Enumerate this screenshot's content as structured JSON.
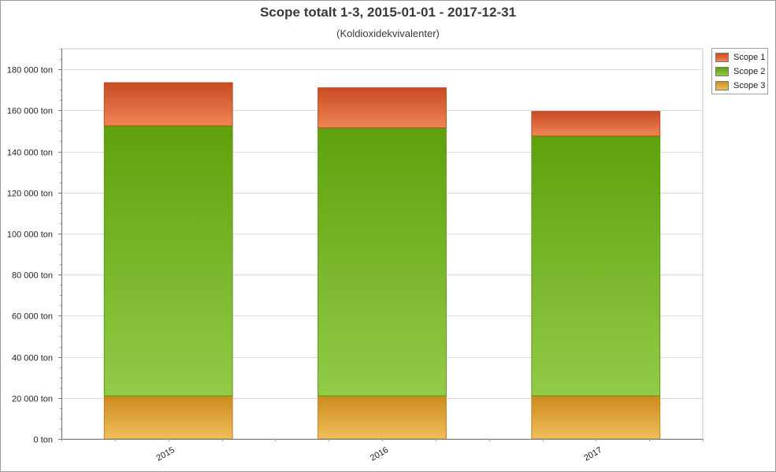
{
  "chart_data": {
    "type": "bar",
    "stacked": true,
    "title": "Scope totalt 1-3, 2015-01-01 - 2017-12-31",
    "subtitle": "(Koldioxidekvivalenter)",
    "categories": [
      "2015",
      "2016",
      "2017"
    ],
    "series": [
      {
        "name": "Scope 3",
        "values": [
          21000,
          21000,
          21000
        ],
        "color": "#e0a233"
      },
      {
        "name": "Scope 2",
        "values": [
          131500,
          130500,
          126500
        ],
        "color": "#72b526"
      },
      {
        "name": "Scope 1",
        "values": [
          21000,
          19500,
          12000
        ],
        "color": "#e4643a"
      }
    ],
    "ylim": [
      0,
      190000
    ],
    "yticks": [
      0,
      20000,
      40000,
      60000,
      80000,
      100000,
      120000,
      140000,
      160000,
      180000
    ],
    "ytick_labels": [
      "0 ton",
      "20 000 ton",
      "40 000 ton",
      "60 000 ton",
      "80 000 ton",
      "100 000 ton",
      "120 000 ton",
      "140 000 ton",
      "160 000 ton",
      "180 000 ton"
    ],
    "grid": true,
    "legend_position": "top-right",
    "legend_order": [
      "Scope 1",
      "Scope 2",
      "Scope 3"
    ]
  }
}
